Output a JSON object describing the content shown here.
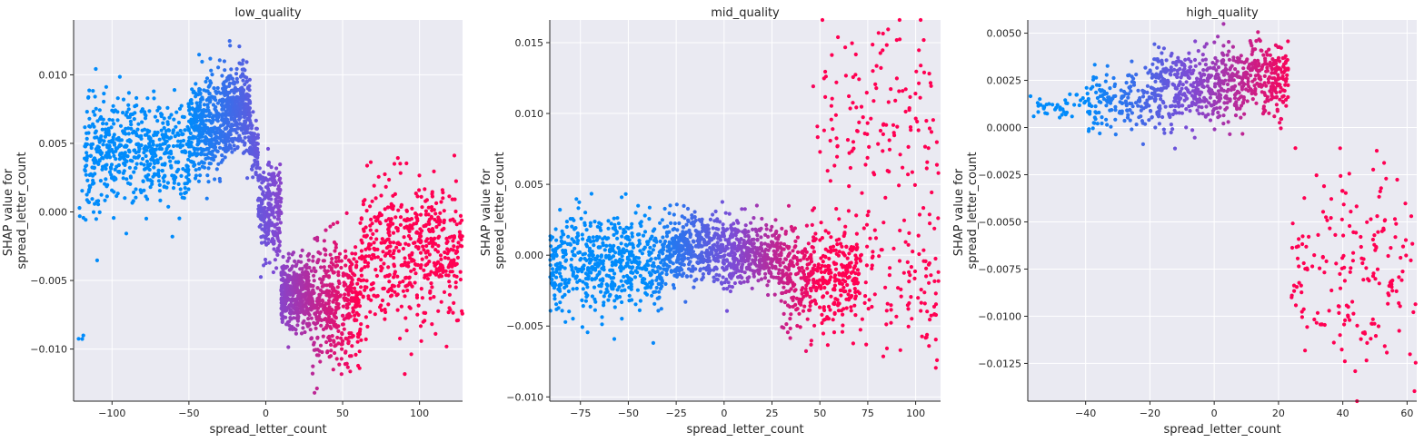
{
  "chart_data": [
    {
      "type": "scatter",
      "title": "low_quality",
      "xlabel": "spread_letter_count",
      "ylabel": [
        "SHAP value for",
        "spread_letter_count"
      ],
      "xlim": [
        -125,
        128
      ],
      "ylim": [
        -0.0138,
        0.014
      ],
      "xticks": [
        -100,
        -50,
        0,
        50,
        100
      ],
      "yticks": [
        -0.01,
        -0.005,
        0.0,
        0.005,
        0.01
      ],
      "ytick_labels": [
        "−0.010",
        "−0.005",
        "0.000",
        "0.005",
        "0.010"
      ],
      "xtick_labels": [
        "−100",
        "−50",
        "0",
        "50",
        "100"
      ],
      "color_range": [
        -50,
        60
      ],
      "clusters": [
        {
          "x": [
            -122,
            -108
          ],
          "ymid": 0.0,
          "ysd": 0.003,
          "n": 10
        },
        {
          "x": [
            -118,
            -50
          ],
          "ymid": 0.0045,
          "ysd": 0.0018,
          "n": 560
        },
        {
          "x": [
            -50,
            -28
          ],
          "ymid": 0.0062,
          "ysd": 0.0018,
          "n": 360
        },
        {
          "x": [
            -28,
            -10
          ],
          "ymid": 0.0074,
          "ysd": 0.0016,
          "n": 380
        },
        {
          "x": [
            -10,
            -5
          ],
          "ymid": 0.0046,
          "ysd": 0.001,
          "n": 70
        },
        {
          "x": [
            -5,
            10
          ],
          "ymid": 0.0002,
          "ysd": 0.0018,
          "n": 240
        },
        {
          "x": [
            10,
            30
          ],
          "ymid": -0.006,
          "ysd": 0.0013,
          "n": 420
        },
        {
          "x": [
            30,
            62
          ],
          "ymid": -0.0065,
          "ysd": 0.0022,
          "n": 420
        },
        {
          "x": [
            62,
            128
          ],
          "ymid": -0.003,
          "ysd": 0.0028,
          "n": 520
        },
        {
          "x": [
            -122,
            -118
          ],
          "ymid": -0.009,
          "ysd": 0.0004,
          "n": 3
        }
      ],
      "series": []
    },
    {
      "type": "scatter",
      "title": "mid_quality",
      "xlabel": "spread_letter_count",
      "ylabel": [
        "SHAP value for",
        "spread_letter_count"
      ],
      "xlim": [
        -91,
        113
      ],
      "ylim": [
        -0.0103,
        0.0166
      ],
      "xticks": [
        -75,
        -50,
        -25,
        0,
        25,
        50,
        75,
        100
      ],
      "xtick_labels": [
        "−75",
        "−50",
        "−25",
        "0",
        "25",
        "50",
        "75",
        "100"
      ],
      "yticks": [
        -0.01,
        -0.005,
        0.0,
        0.005,
        0.01,
        0.015
      ],
      "ytick_labels": [
        "−0.010",
        "−0.005",
        "0.000",
        "0.005",
        "0.010",
        "0.015"
      ],
      "color_range": [
        -40,
        50
      ],
      "clusters": [
        {
          "x": [
            -91,
            -30
          ],
          "ymid": -0.0005,
          "ysd": 0.0018,
          "n": 600
        },
        {
          "x": [
            -30,
            0
          ],
          "ymid": 0.0005,
          "ysd": 0.0012,
          "n": 420
        },
        {
          "x": [
            0,
            30
          ],
          "ymid": 0.0,
          "ysd": 0.0012,
          "n": 380
        },
        {
          "x": [
            30,
            70
          ],
          "ymid": -0.0015,
          "ysd": 0.0018,
          "n": 420
        },
        {
          "x": [
            45,
            112
          ],
          "ymid": 0.009,
          "ysd": 0.0035,
          "n": 150
        },
        {
          "x": [
            70,
            112
          ],
          "ymid": -0.0015,
          "ysd": 0.0025,
          "n": 110
        }
      ],
      "series": []
    },
    {
      "type": "scatter",
      "title": "high_quality",
      "xlabel": "spread_letter_count",
      "ylabel": [
        "SHAP value for",
        "spread_letter_count"
      ],
      "xlim": [
        -58,
        63
      ],
      "ylim": [
        -0.0145,
        0.0057
      ],
      "xticks": [
        -40,
        -20,
        0,
        20,
        40,
        60
      ],
      "xtick_labels": [
        "−40",
        "−20",
        "0",
        "20",
        "40",
        "60"
      ],
      "yticks": [
        -0.0125,
        -0.01,
        -0.0075,
        -0.005,
        -0.0025,
        0.0,
        0.0025,
        0.005
      ],
      "ytick_labels": [
        "−0.0125",
        "−0.0100",
        "−0.0075",
        "−0.0050",
        "−0.0025",
        "0.0000",
        "0.0025",
        "0.0050"
      ],
      "color_range": [
        -40,
        25
      ],
      "clusters": [
        {
          "x": [
            -58,
            -40
          ],
          "ymid": 0.0012,
          "ysd": 0.0004,
          "n": 40
        },
        {
          "x": [
            -40,
            -20
          ],
          "ymid": 0.0014,
          "ysd": 0.0008,
          "n": 160
        },
        {
          "x": [
            -20,
            0
          ],
          "ymid": 0.0022,
          "ysd": 0.001,
          "n": 320
        },
        {
          "x": [
            0,
            23
          ],
          "ymid": 0.0025,
          "ysd": 0.001,
          "n": 380
        },
        {
          "x": [
            24,
            63
          ],
          "ymid": -0.0075,
          "ysd": 0.0028,
          "n": 190
        }
      ],
      "series": []
    }
  ]
}
